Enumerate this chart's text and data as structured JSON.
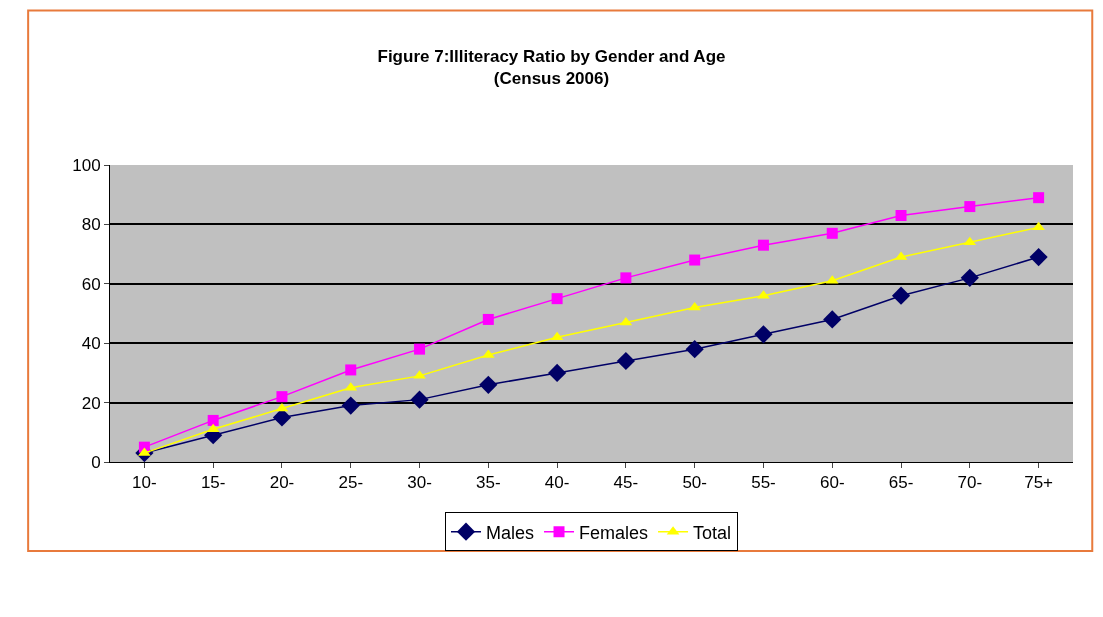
{
  "chart_data": {
    "type": "line",
    "title": "Figure 7:Illiteracy Ratio by Gender and Age\n(Census 2006)",
    "categories": [
      "10-",
      "15-",
      "20-",
      "25-",
      "30-",
      "35-",
      "40-",
      "45-",
      "50-",
      "55-",
      "60-",
      "65-",
      "70-",
      "75+"
    ],
    "series": [
      {
        "name": "Males",
        "color": "#000066",
        "marker": "diamond",
        "values": [
          3,
          9,
          15,
          19,
          21,
          26,
          30,
          34,
          38,
          43,
          48,
          56,
          62,
          69
        ]
      },
      {
        "name": "Females",
        "color": "#ff00ff",
        "marker": "square",
        "values": [
          5,
          14,
          22,
          31,
          38,
          48,
          55,
          62,
          68,
          73,
          77,
          83,
          86,
          89
        ]
      },
      {
        "name": "Total",
        "color": "#ffff00",
        "marker": "triangle",
        "values": [
          3,
          11,
          18,
          25,
          29,
          36,
          42,
          47,
          52,
          56,
          61,
          69,
          74,
          79
        ]
      }
    ],
    "ylim": [
      0,
      100
    ],
    "yticks": [
      0,
      20,
      40,
      60,
      80,
      100
    ],
    "grid": "y",
    "legend": "bottom",
    "line_style": "solid"
  }
}
